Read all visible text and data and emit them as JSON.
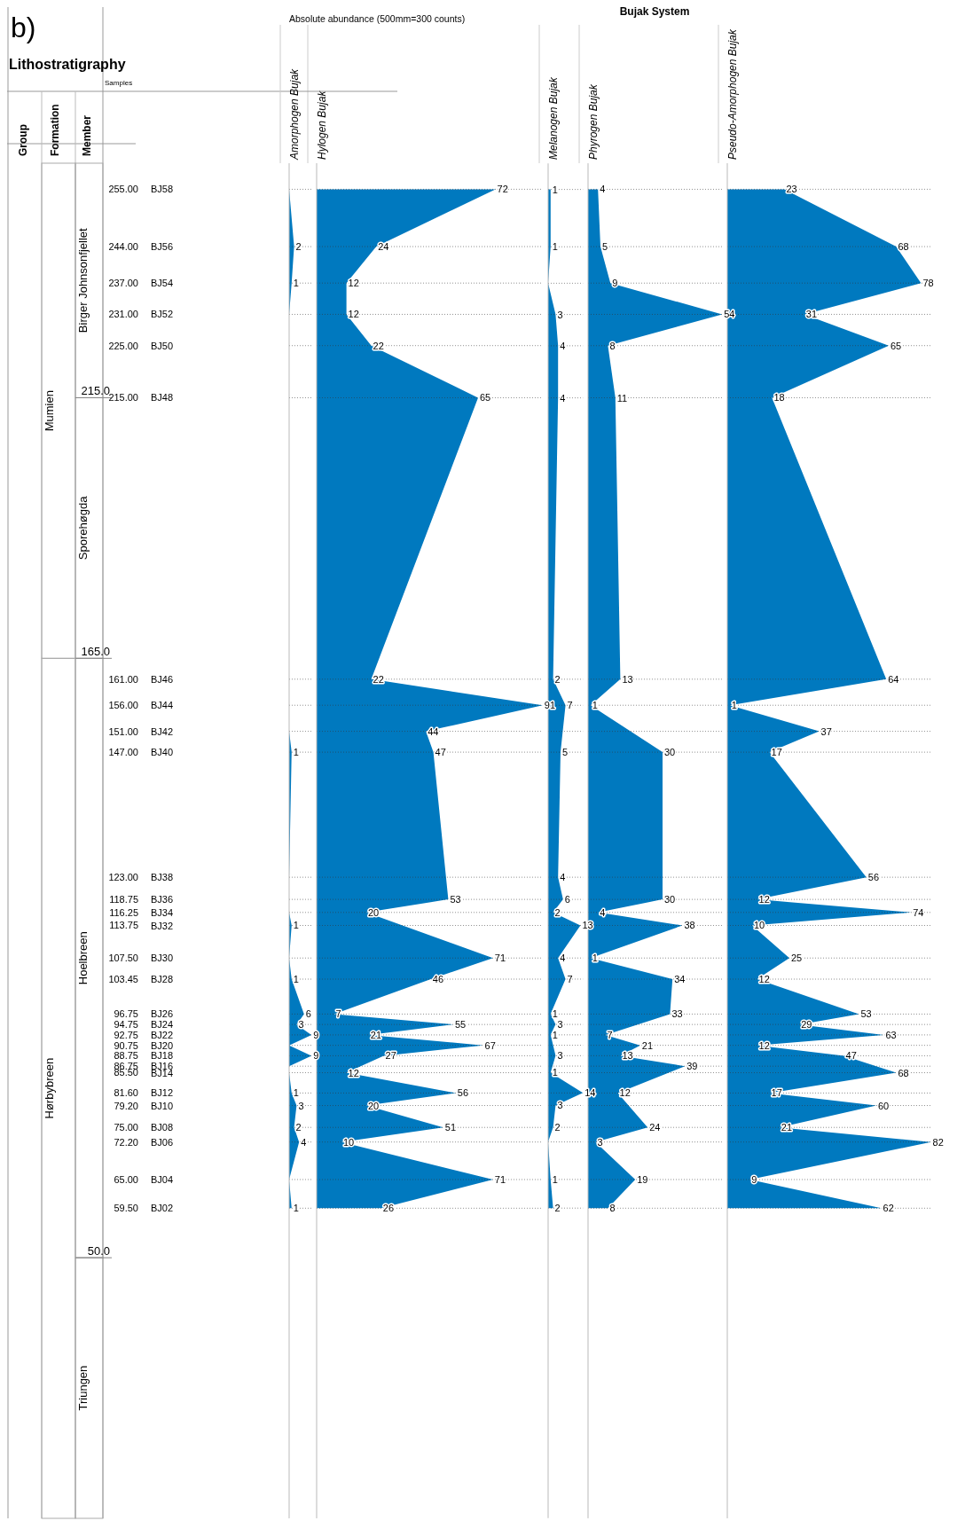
{
  "chart_data": [
    {
      "type": "area",
      "title": "Amorphogen Bujak",
      "orientation": "horizontal",
      "color": "#0079bf",
      "grid": "y",
      "tick_labels": "y",
      "x": [
        255,
        244,
        237,
        231,
        225,
        215,
        161,
        156,
        151,
        147,
        123,
        118.75,
        116.25,
        113.75,
        107.5,
        103.45,
        96.75,
        94.75,
        92.75,
        90.75,
        88.75,
        86.75,
        85.5,
        81.6,
        79.2,
        75,
        72.2,
        65,
        59.5
      ],
      "values": [
        0,
        2,
        1,
        0,
        0,
        0,
        0,
        0,
        0,
        1,
        0,
        0,
        0,
        1,
        0,
        1,
        6,
        3,
        9,
        0,
        9,
        0,
        0,
        1,
        3,
        2,
        4,
        0,
        1
      ],
      "value_labels": [
        null,
        "2",
        "1",
        null,
        null,
        null,
        null,
        null,
        null,
        "1",
        null,
        null,
        null,
        "1",
        null,
        "1",
        "6",
        "3",
        "9",
        null,
        "9",
        null,
        null,
        "1",
        "3",
        "2",
        "4",
        null,
        "1"
      ],
      "ylim": [
        0,
        260
      ],
      "yticks": [
        {
          "value": 255,
          "label": "255.00"
        },
        {
          "value": 244,
          "label": "244.00"
        },
        {
          "value": 237,
          "label": "237.00"
        },
        {
          "value": 231,
          "label": "231.00"
        },
        {
          "value": 225,
          "label": "225.00"
        },
        {
          "value": 215,
          "label": "215.00"
        },
        {
          "value": 161,
          "label": "161.00"
        },
        {
          "value": 156,
          "label": "156.00"
        },
        {
          "value": 151,
          "label": "151.00"
        },
        {
          "value": 147,
          "label": "147.00"
        },
        {
          "value": 123,
          "label": "123.00"
        },
        {
          "value": 118.75,
          "label": "118.75"
        },
        {
          "value": 116.25,
          "label": "116.25"
        },
        {
          "value": 113.75,
          "label": "113.75"
        },
        {
          "value": 107.5,
          "label": "107.50"
        },
        {
          "value": 103.45,
          "label": "103.45"
        },
        {
          "value": 96.75,
          "label": "96.75"
        },
        {
          "value": 94.75,
          "label": "94.75"
        },
        {
          "value": 92.75,
          "label": "92.75"
        },
        {
          "value": 90.75,
          "label": "90.75"
        },
        {
          "value": 88.75,
          "label": "88.75"
        },
        {
          "value": 86.75,
          "label": "86.75"
        },
        {
          "value": 85.5,
          "label": "85.50"
        },
        {
          "value": 81.6,
          "label": "81.60"
        },
        {
          "value": 79.2,
          "label": "79.20"
        },
        {
          "value": 75,
          "label": "75.00"
        },
        {
          "value": 72.2,
          "label": "72.20"
        },
        {
          "value": 65,
          "label": "65.00"
        },
        {
          "value": 59.5,
          "label": "59.50"
        }
      ],
      "ref_lines": [
        {
          "axis": "y",
          "value": 215,
          "label": "215.0"
        },
        {
          "axis": "y",
          "value": 165,
          "label": "165.0"
        },
        {
          "axis": "y",
          "value": 50,
          "label": "50.0"
        }
      ],
      "annotations": [
        "b)",
        "Lithostratigraphy",
        "Samples",
        "Group",
        "Formation",
        "Member",
        "Absolute abundance  (500mm=300 counts)",
        "Bujak System",
        "Mumien",
        "Hørbybreen",
        "Birger Johnsonfjellet",
        "Sporehøgda",
        "Hoelbreen",
        "Triungen",
        "BJ58",
        "BJ56",
        "BJ54",
        "BJ52",
        "BJ50",
        "BJ48",
        "BJ46",
        "BJ44",
        "BJ42",
        "BJ40",
        "BJ38",
        "BJ36",
        "BJ34",
        "BJ32",
        "BJ30",
        "BJ28",
        "BJ26",
        "BJ24",
        "BJ22",
        "BJ20",
        "BJ18",
        "BJ16",
        "BJ14",
        "BJ12",
        "BJ10",
        "BJ08",
        "BJ06",
        "BJ04",
        "BJ02"
      ]
    },
    {
      "type": "area",
      "title": "Hylogen Bujak",
      "orientation": "horizontal",
      "color": "#0079bf",
      "grid": "y",
      "tick_labels": false,
      "x": [
        255,
        244,
        237,
        231,
        225,
        215,
        161,
        156,
        151,
        147,
        123,
        118.75,
        116.25,
        113.75,
        107.5,
        103.45,
        96.75,
        94.75,
        92.75,
        90.75,
        88.75,
        86.75,
        85.5,
        81.6,
        79.2,
        75,
        72.2,
        65,
        59.5
      ],
      "values": [
        72,
        24,
        12,
        12,
        22,
        65,
        22,
        91,
        44,
        47,
        null,
        53,
        20,
        null,
        71,
        46,
        7,
        55,
        21,
        67,
        27,
        null,
        12,
        56,
        20,
        51,
        10,
        71,
        26
      ],
      "value_labels": [
        "72",
        "24",
        "12",
        "12",
        "22",
        "65",
        "22",
        "91",
        "44",
        "47",
        null,
        "53",
        "20",
        null,
        "71",
        "46",
        "7",
        "55",
        "21",
        "67",
        "27",
        null,
        "12",
        "56",
        "20",
        "51",
        "10",
        "71",
        "26"
      ],
      "ylim": [
        0,
        260
      ]
    },
    {
      "type": "area",
      "title": "Melanogen Bujak",
      "orientation": "horizontal",
      "color": "#0079bf",
      "grid": "y",
      "tick_labels": false,
      "x": [
        255,
        244,
        237,
        231,
        225,
        215,
        161,
        156,
        151,
        147,
        123,
        118.75,
        116.25,
        113.75,
        107.5,
        103.45,
        96.75,
        94.75,
        92.75,
        90.75,
        88.75,
        86.75,
        85.5,
        81.6,
        79.2,
        75,
        72.2,
        65,
        59.5
      ],
      "values": [
        1,
        1,
        0,
        3,
        4,
        4,
        2,
        7,
        null,
        5,
        4,
        6,
        2,
        13,
        4,
        7,
        1,
        3,
        1,
        null,
        3,
        null,
        1,
        14,
        3,
        2,
        0,
        1,
        2
      ],
      "value_labels": [
        "1",
        "1",
        null,
        "3",
        "4",
        "4",
        "2",
        "7",
        null,
        "5",
        "4",
        "6",
        "2",
        "13",
        "4",
        "7",
        "1",
        "3",
        "1",
        null,
        "3",
        null,
        "1",
        "14",
        "3",
        "2",
        null,
        "1",
        "2"
      ],
      "ylim": [
        0,
        260
      ]
    },
    {
      "type": "area",
      "title": "Phyrogen Bujak",
      "orientation": "horizontal",
      "color": "#0079bf",
      "grid": "y",
      "tick_labels": false,
      "x": [
        255,
        244,
        237,
        231,
        225,
        215,
        161,
        156,
        151,
        147,
        123,
        118.75,
        116.25,
        113.75,
        107.5,
        103.45,
        96.75,
        94.75,
        92.75,
        90.75,
        88.75,
        86.75,
        85.5,
        81.6,
        79.2,
        75,
        72.2,
        65,
        59.5
      ],
      "values": [
        4,
        5,
        9,
        54,
        8,
        11,
        13,
        1,
        null,
        30,
        null,
        30,
        4,
        38,
        1,
        34,
        33,
        null,
        7,
        21,
        13,
        39,
        null,
        12,
        null,
        24,
        3,
        19,
        8
      ],
      "value_labels": [
        "4",
        "5",
        "9",
        "54",
        "8",
        "11",
        "13",
        "1",
        null,
        "30",
        null,
        "30",
        "4",
        "38",
        "1",
        "34",
        "33",
        null,
        "7",
        "21",
        "13",
        "39",
        null,
        "12",
        null,
        "24",
        "3",
        "19",
        "8"
      ],
      "ylim": [
        0,
        260
      ]
    },
    {
      "type": "area",
      "title": "Pseudo-Amorphogen Bujak",
      "orientation": "horizontal",
      "color": "#0079bf",
      "grid": "y",
      "tick_labels": false,
      "x": [
        255,
        244,
        237,
        231,
        225,
        215,
        161,
        156,
        151,
        147,
        123,
        118.75,
        116.25,
        113.75,
        107.5,
        103.45,
        96.75,
        94.75,
        92.75,
        90.75,
        88.75,
        86.75,
        85.5,
        81.6,
        79.2,
        75,
        72.2,
        65,
        59.5
      ],
      "values": [
        23,
        68,
        78,
        31,
        65,
        18,
        64,
        1,
        37,
        17,
        56,
        12,
        74,
        10,
        25,
        12,
        53,
        29,
        63,
        12,
        47,
        null,
        68,
        17,
        60,
        21,
        82,
        9,
        62
      ],
      "value_labels": [
        "23",
        "68",
        "78",
        "31",
        "65",
        "18",
        "64",
        "1",
        "37",
        "17",
        "56",
        "12",
        "74",
        "10",
        "25",
        "12",
        "53",
        "29",
        "63",
        "12",
        "47",
        null,
        "68",
        "17",
        "60",
        "21",
        "82",
        "9",
        "62"
      ],
      "ylim": [
        0,
        260
      ]
    }
  ]
}
